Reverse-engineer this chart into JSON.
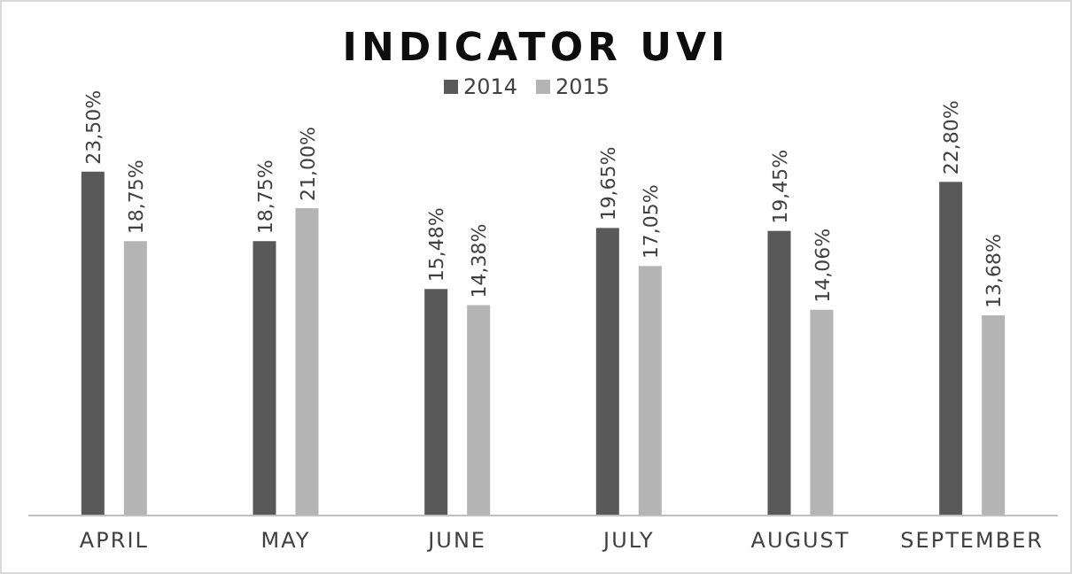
{
  "chart_data": {
    "type": "bar",
    "title": "INDICATOR UVI",
    "categories": [
      "APRIL",
      "MAY",
      "JUNE",
      "JULY",
      "AUGUST",
      "SEPTEMBER"
    ],
    "series": [
      {
        "name": "2014",
        "color": "#595959",
        "values": [
          23.5,
          18.75,
          15.48,
          19.65,
          19.45,
          22.8
        ],
        "value_labels": [
          "23,50%",
          "18,75%",
          "15,48%",
          "19,65%",
          "19,45%",
          "22,80%"
        ]
      },
      {
        "name": "2015",
        "color": "#b4b4b4",
        "values": [
          18.75,
          21,
          14.38,
          17.05,
          14.06,
          13.68
        ],
        "value_labels": [
          "18,75%",
          "21,00%",
          "14,38%",
          "17,05%",
          "14,06%",
          "13,68%"
        ]
      }
    ],
    "legend": "top",
    "grid": false
  }
}
